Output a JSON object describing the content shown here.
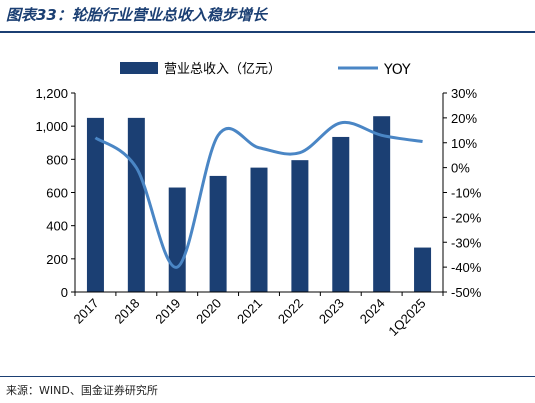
{
  "header": {
    "title": "图表33：轮胎行业营业总收入稳步增长"
  },
  "footer": {
    "source": "来源：WIND、国金证券研究所"
  },
  "chart_data": {
    "type": "bar",
    "categories": [
      "2017",
      "2018",
      "2019",
      "2020",
      "2021",
      "2022",
      "2023",
      "2024",
      "1Q2025"
    ],
    "series": [
      {
        "name": "营业总收入（亿元）",
        "type": "bar",
        "axis": "left",
        "values": [
          1050,
          1050,
          630,
          700,
          750,
          795,
          935,
          1060,
          268
        ]
      },
      {
        "name": "YOY",
        "type": "line",
        "axis": "right",
        "smooth": true,
        "values": [
          12,
          0,
          -40,
          13,
          8,
          6,
          18,
          13,
          10.5
        ]
      }
    ],
    "yleft": {
      "min": 0,
      "max": 1200,
      "step": 200,
      "ticks": [
        "0",
        "200",
        "400",
        "600",
        "800",
        "1,000",
        "1,200"
      ]
    },
    "yright": {
      "min": -50,
      "max": 30,
      "step": 10,
      "ticks": [
        "-50%",
        "-40%",
        "-30%",
        "-20%",
        "-10%",
        "0%",
        "10%",
        "20%",
        "30%"
      ]
    },
    "legend": "top",
    "grid": false,
    "colors": {
      "bar": "#1b3f73",
      "line": "#4a86c5"
    }
  }
}
